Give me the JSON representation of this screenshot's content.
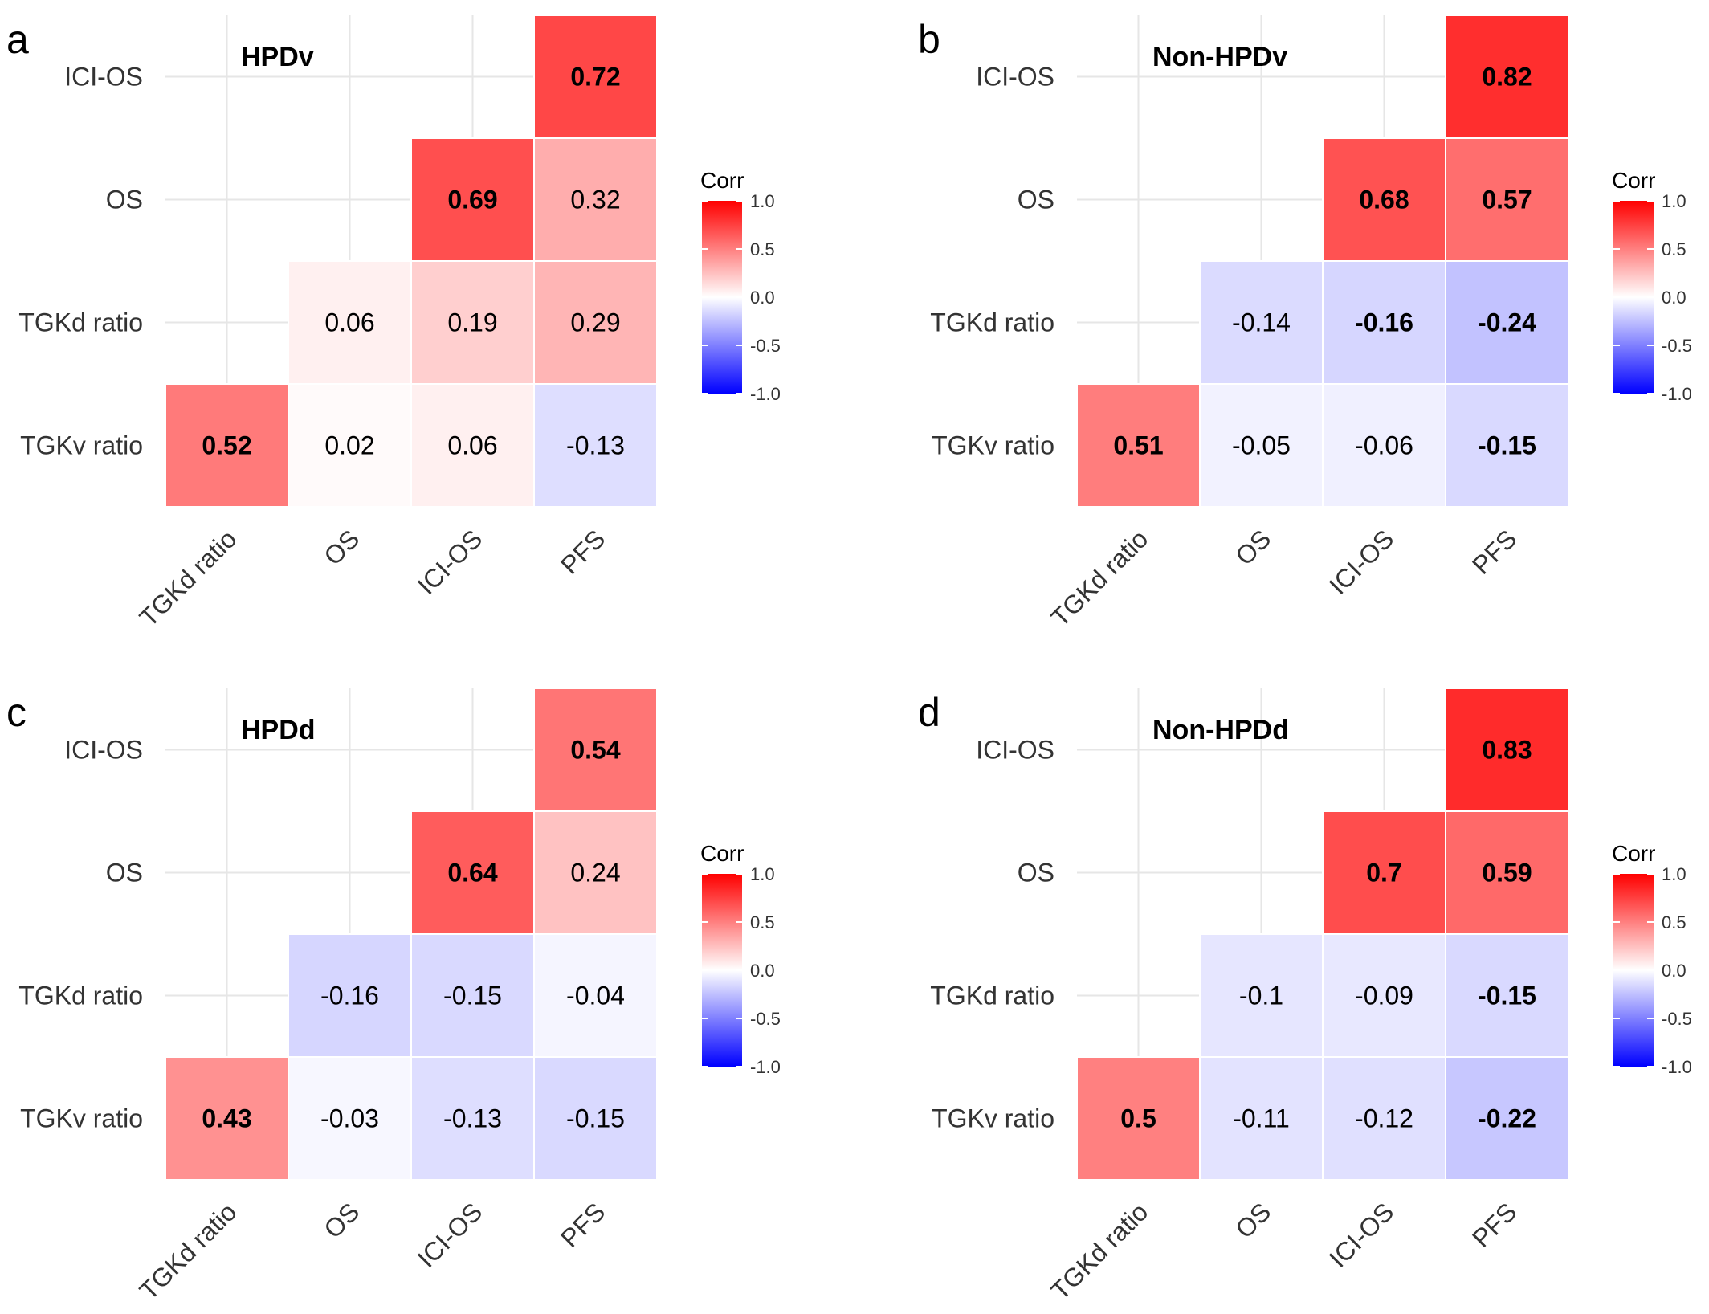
{
  "chart_data": [
    {
      "panel": "a",
      "title": "HPDv",
      "type": "heatmap",
      "y": [
        "ICI-OS",
        "OS",
        "TGKd ratio",
        "TGKv ratio"
      ],
      "x": [
        "TGKd ratio",
        "OS",
        "ICI-OS",
        "PFS"
      ],
      "legend_title": "Corr",
      "legend_ticks": [
        "1.0",
        "0.5",
        "0.0",
        "-0.5",
        "-1.0"
      ],
      "scale": [
        -1,
        1
      ],
      "cells": [
        {
          "row": "ICI-OS",
          "col": "PFS",
          "value": 0.72,
          "label": "0.72",
          "bold": true
        },
        {
          "row": "OS",
          "col": "ICI-OS",
          "value": 0.69,
          "label": "0.69",
          "bold": true
        },
        {
          "row": "OS",
          "col": "PFS",
          "value": 0.32,
          "label": "0.32",
          "bold": false
        },
        {
          "row": "TGKd ratio",
          "col": "OS",
          "value": 0.06,
          "label": "0.06",
          "bold": false
        },
        {
          "row": "TGKd ratio",
          "col": "ICI-OS",
          "value": 0.19,
          "label": "0.19",
          "bold": false
        },
        {
          "row": "TGKd ratio",
          "col": "PFS",
          "value": 0.29,
          "label": "0.29",
          "bold": false
        },
        {
          "row": "TGKv ratio",
          "col": "TGKd ratio",
          "value": 0.52,
          "label": "0.52",
          "bold": true
        },
        {
          "row": "TGKv ratio",
          "col": "OS",
          "value": 0.02,
          "label": "0.02",
          "bold": false
        },
        {
          "row": "TGKv ratio",
          "col": "ICI-OS",
          "value": 0.06,
          "label": "0.06",
          "bold": false
        },
        {
          "row": "TGKv ratio",
          "col": "PFS",
          "value": -0.13,
          "label": "-0.13",
          "bold": false
        }
      ]
    },
    {
      "panel": "b",
      "title": "Non-HPDv",
      "type": "heatmap",
      "y": [
        "ICI-OS",
        "OS",
        "TGKd ratio",
        "TGKv ratio"
      ],
      "x": [
        "TGKd ratio",
        "OS",
        "ICI-OS",
        "PFS"
      ],
      "legend_title": "Corr",
      "legend_ticks": [
        "1.0",
        "0.5",
        "0.0",
        "-0.5",
        "-1.0"
      ],
      "scale": [
        -1,
        1
      ],
      "cells": [
        {
          "row": "ICI-OS",
          "col": "PFS",
          "value": 0.82,
          "label": "0.82",
          "bold": true
        },
        {
          "row": "OS",
          "col": "ICI-OS",
          "value": 0.68,
          "label": "0.68",
          "bold": true
        },
        {
          "row": "OS",
          "col": "PFS",
          "value": 0.57,
          "label": "0.57",
          "bold": true
        },
        {
          "row": "TGKd ratio",
          "col": "OS",
          "value": -0.14,
          "label": "-0.14",
          "bold": false
        },
        {
          "row": "TGKd ratio",
          "col": "ICI-OS",
          "value": -0.16,
          "label": "-0.16",
          "bold": true
        },
        {
          "row": "TGKd ratio",
          "col": "PFS",
          "value": -0.24,
          "label": "-0.24",
          "bold": true
        },
        {
          "row": "TGKv ratio",
          "col": "TGKd ratio",
          "value": 0.51,
          "label": "0.51",
          "bold": true
        },
        {
          "row": "TGKv ratio",
          "col": "OS",
          "value": -0.05,
          "label": "-0.05",
          "bold": false
        },
        {
          "row": "TGKv ratio",
          "col": "ICI-OS",
          "value": -0.06,
          "label": "-0.06",
          "bold": false
        },
        {
          "row": "TGKv ratio",
          "col": "PFS",
          "value": -0.15,
          "label": "-0.15",
          "bold": true
        }
      ]
    },
    {
      "panel": "c",
      "title": "HPDd",
      "type": "heatmap",
      "y": [
        "ICI-OS",
        "OS",
        "TGKd ratio",
        "TGKv ratio"
      ],
      "x": [
        "TGKd ratio",
        "OS",
        "ICI-OS",
        "PFS"
      ],
      "legend_title": "Corr",
      "legend_ticks": [
        "1.0",
        "0.5",
        "0.0",
        "-0.5",
        "-1.0"
      ],
      "scale": [
        -1,
        1
      ],
      "cells": [
        {
          "row": "ICI-OS",
          "col": "PFS",
          "value": 0.54,
          "label": "0.54",
          "bold": true
        },
        {
          "row": "OS",
          "col": "ICI-OS",
          "value": 0.64,
          "label": "0.64",
          "bold": true
        },
        {
          "row": "OS",
          "col": "PFS",
          "value": 0.24,
          "label": "0.24",
          "bold": false
        },
        {
          "row": "TGKd ratio",
          "col": "OS",
          "value": -0.16,
          "label": "-0.16",
          "bold": false
        },
        {
          "row": "TGKd ratio",
          "col": "ICI-OS",
          "value": -0.15,
          "label": "-0.15",
          "bold": false
        },
        {
          "row": "TGKd ratio",
          "col": "PFS",
          "value": -0.04,
          "label": "-0.04",
          "bold": false
        },
        {
          "row": "TGKv ratio",
          "col": "TGKd ratio",
          "value": 0.43,
          "label": "0.43",
          "bold": true
        },
        {
          "row": "TGKv ratio",
          "col": "OS",
          "value": -0.03,
          "label": "-0.03",
          "bold": false
        },
        {
          "row": "TGKv ratio",
          "col": "ICI-OS",
          "value": -0.13,
          "label": "-0.13",
          "bold": false
        },
        {
          "row": "TGKv ratio",
          "col": "PFS",
          "value": -0.15,
          "label": "-0.15",
          "bold": false
        }
      ]
    },
    {
      "panel": "d",
      "title": "Non-HPDd",
      "type": "heatmap",
      "y": [
        "ICI-OS",
        "OS",
        "TGKd ratio",
        "TGKv ratio"
      ],
      "x": [
        "TGKd ratio",
        "OS",
        "ICI-OS",
        "PFS"
      ],
      "legend_title": "Corr",
      "legend_ticks": [
        "1.0",
        "0.5",
        "0.0",
        "-0.5",
        "-1.0"
      ],
      "scale": [
        -1,
        1
      ],
      "cells": [
        {
          "row": "ICI-OS",
          "col": "PFS",
          "value": 0.83,
          "label": "0.83",
          "bold": true
        },
        {
          "row": "OS",
          "col": "ICI-OS",
          "value": 0.7,
          "label": "0.7",
          "bold": true
        },
        {
          "row": "OS",
          "col": "PFS",
          "value": 0.59,
          "label": "0.59",
          "bold": true
        },
        {
          "row": "TGKd ratio",
          "col": "OS",
          "value": -0.1,
          "label": "-0.1",
          "bold": false
        },
        {
          "row": "TGKd ratio",
          "col": "ICI-OS",
          "value": -0.09,
          "label": "-0.09",
          "bold": false
        },
        {
          "row": "TGKd ratio",
          "col": "PFS",
          "value": -0.15,
          "label": "-0.15",
          "bold": true
        },
        {
          "row": "TGKv ratio",
          "col": "TGKd ratio",
          "value": 0.5,
          "label": "0.5",
          "bold": true
        },
        {
          "row": "TGKv ratio",
          "col": "OS",
          "value": -0.11,
          "label": "-0.11",
          "bold": false
        },
        {
          "row": "TGKv ratio",
          "col": "ICI-OS",
          "value": -0.12,
          "label": "-0.12",
          "bold": false
        },
        {
          "row": "TGKv ratio",
          "col": "PFS",
          "value": -0.22,
          "label": "-0.22",
          "bold": true
        }
      ]
    }
  ],
  "colors": {
    "low": "#0000ff",
    "mid": "#ffffff",
    "high": "#ff0000",
    "grid": "#e6e6e6"
  }
}
